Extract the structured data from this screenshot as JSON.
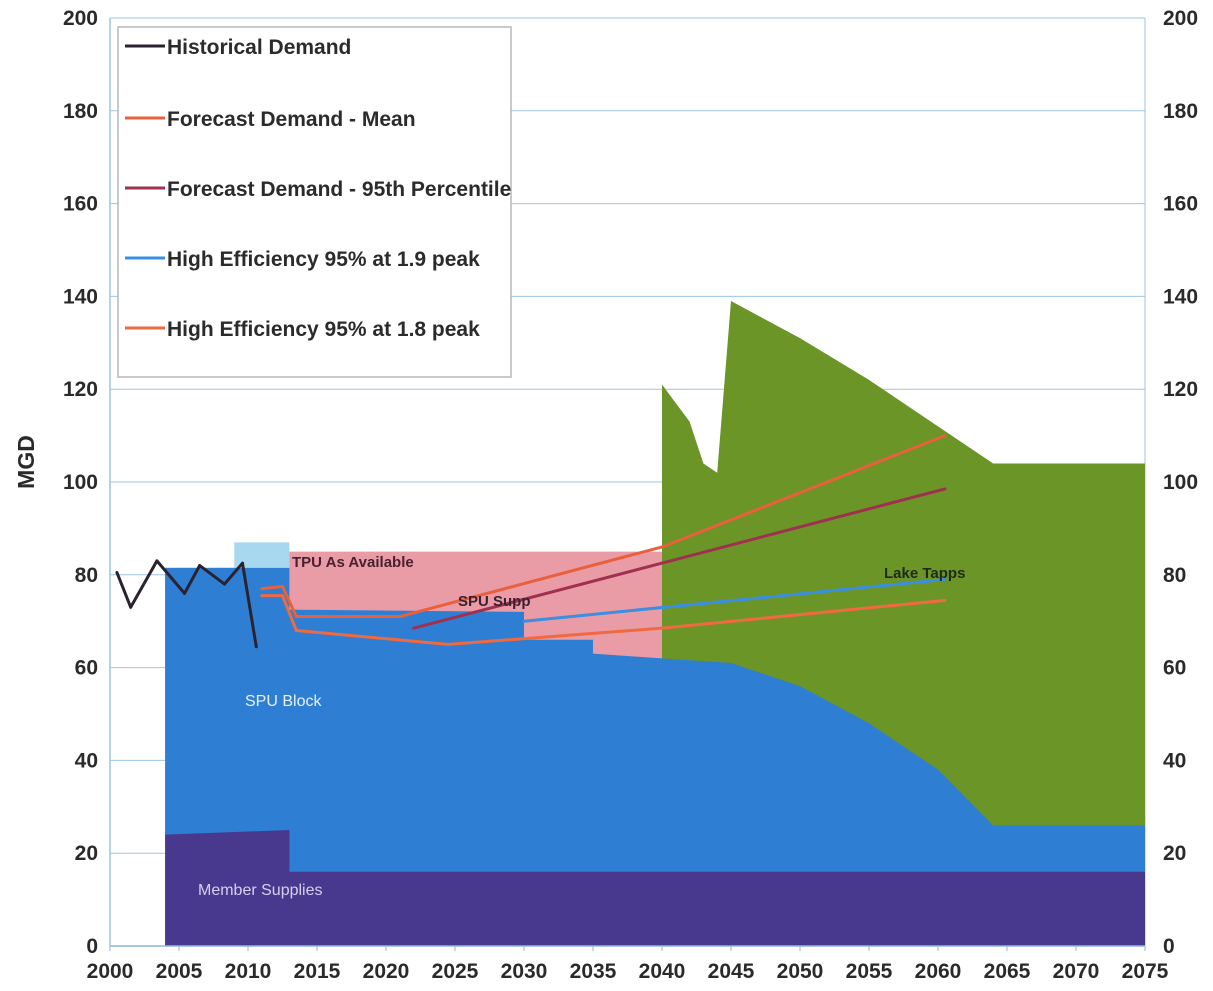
{
  "chart_data": {
    "type": "area",
    "ylabel": "MGD",
    "xlim": [
      2000,
      2075
    ],
    "ylim": [
      0,
      200
    ],
    "x_ticks": [
      2000,
      2005,
      2010,
      2015,
      2020,
      2025,
      2030,
      2035,
      2040,
      2045,
      2050,
      2055,
      2060,
      2065,
      2070,
      2075
    ],
    "y_ticks": [
      0,
      20,
      40,
      60,
      80,
      100,
      120,
      140,
      160,
      180,
      200
    ],
    "grid": true,
    "secondary_y_axis": true,
    "legend_position": "top-left",
    "legend": [
      {
        "name": "Historical Demand",
        "color": "#2b2230"
      },
      {
        "name": "Forecast Demand - Mean",
        "color": "#e8603c"
      },
      {
        "name": "Forecast Demand - 95th Percentile",
        "color": "#a0304f"
      },
      {
        "name": "High Efficiency 95% at 1.9 peak",
        "color": "#3a8fe0"
      },
      {
        "name": "High Efficiency 95% at 1.8 peak",
        "color": "#ef6a40"
      }
    ],
    "annotations": {
      "tpu": "TPU As Available",
      "spu_supp": "SPU Supp",
      "lake_tapps": "Lake Tapps",
      "spu_block": "SPU  Block",
      "member": "Member Supplies"
    },
    "stacked_areas": [
      {
        "name": "Member Supplies",
        "color": "#48398f",
        "points": [
          [
            2004,
            24
          ],
          [
            2013,
            25
          ],
          [
            2013,
            16
          ],
          [
            2075,
            16
          ]
        ]
      },
      {
        "name": "SPU Block",
        "color": "#2e7fd3",
        "points": [
          [
            2004,
            81.5
          ],
          [
            2013,
            81.5
          ],
          [
            2013,
            72.5
          ],
          [
            2030,
            72
          ],
          [
            2030,
            66
          ],
          [
            2035,
            66
          ],
          [
            2035,
            63
          ],
          [
            2040,
            62
          ],
          [
            2045,
            61
          ],
          [
            2050,
            56
          ],
          [
            2055,
            48
          ],
          [
            2060,
            38
          ],
          [
            2064,
            26
          ],
          [
            2075,
            26
          ]
        ]
      },
      {
        "name": "SPU Supp",
        "color": "#a8d8f0",
        "points": [
          [
            2009,
            87
          ],
          [
            2013,
            87
          ],
          [
            2013,
            78
          ],
          [
            2040,
            78
          ],
          [
            2042,
            76
          ],
          [
            2043,
            72
          ],
          [
            2045,
            68
          ],
          [
            2046,
            65
          ]
        ]
      },
      {
        "name": "TPU As Available",
        "color": "#e99ca6",
        "points": [
          [
            2013,
            85
          ],
          [
            2040,
            85
          ],
          [
            2041,
            82
          ],
          [
            2042,
            79
          ],
          [
            2043,
            74
          ],
          [
            2044,
            69
          ]
        ]
      },
      {
        "name": "Lake Tapps",
        "color": "#6b9527",
        "points": [
          [
            2040,
            121
          ],
          [
            2041,
            117
          ],
          [
            2042,
            113
          ],
          [
            2043,
            104
          ],
          [
            2044,
            102
          ],
          [
            2045,
            139
          ],
          [
            2050,
            131
          ],
          [
            2055,
            122
          ],
          [
            2060,
            112
          ],
          [
            2064,
            104
          ],
          [
            2075,
            104
          ]
        ]
      }
    ],
    "series": [
      {
        "name": "Historical Demand",
        "color": "#2b2230",
        "x": [
          2000.5,
          2001.5,
          2003.4,
          2005.4,
          2006.5,
          2008.3,
          2009.6,
          2010.6
        ],
        "values": [
          80.5,
          73,
          83,
          76,
          82,
          78,
          82.5,
          64.5
        ]
      },
      {
        "name": "Forecast Demand - Mean",
        "color": "#e8603c",
        "x": [
          2011,
          2012.5,
          2013.5,
          2021,
          2040,
          2060.5
        ],
        "values": [
          77,
          77.5,
          71,
          71,
          86,
          110
        ]
      },
      {
        "name": "Forecast Demand - 95th Percentile",
        "color": "#a0304f",
        "x": [
          2022,
          2060.5
        ],
        "values": [
          68.5,
          98.5
        ]
      },
      {
        "name": "High Efficiency 95% at 1.9 peak",
        "color": "#3a8fe0",
        "x": [
          2030,
          2060.5
        ],
        "values": [
          70,
          79
        ]
      },
      {
        "name": "High Efficiency 95% at 1.8 peak",
        "color": "#ef6a40",
        "x": [
          2011,
          2012.5,
          2013.5,
          2024.5,
          2040,
          2060.5
        ],
        "values": [
          75.5,
          75.5,
          68,
          65,
          68.5,
          74.5
        ]
      }
    ]
  }
}
